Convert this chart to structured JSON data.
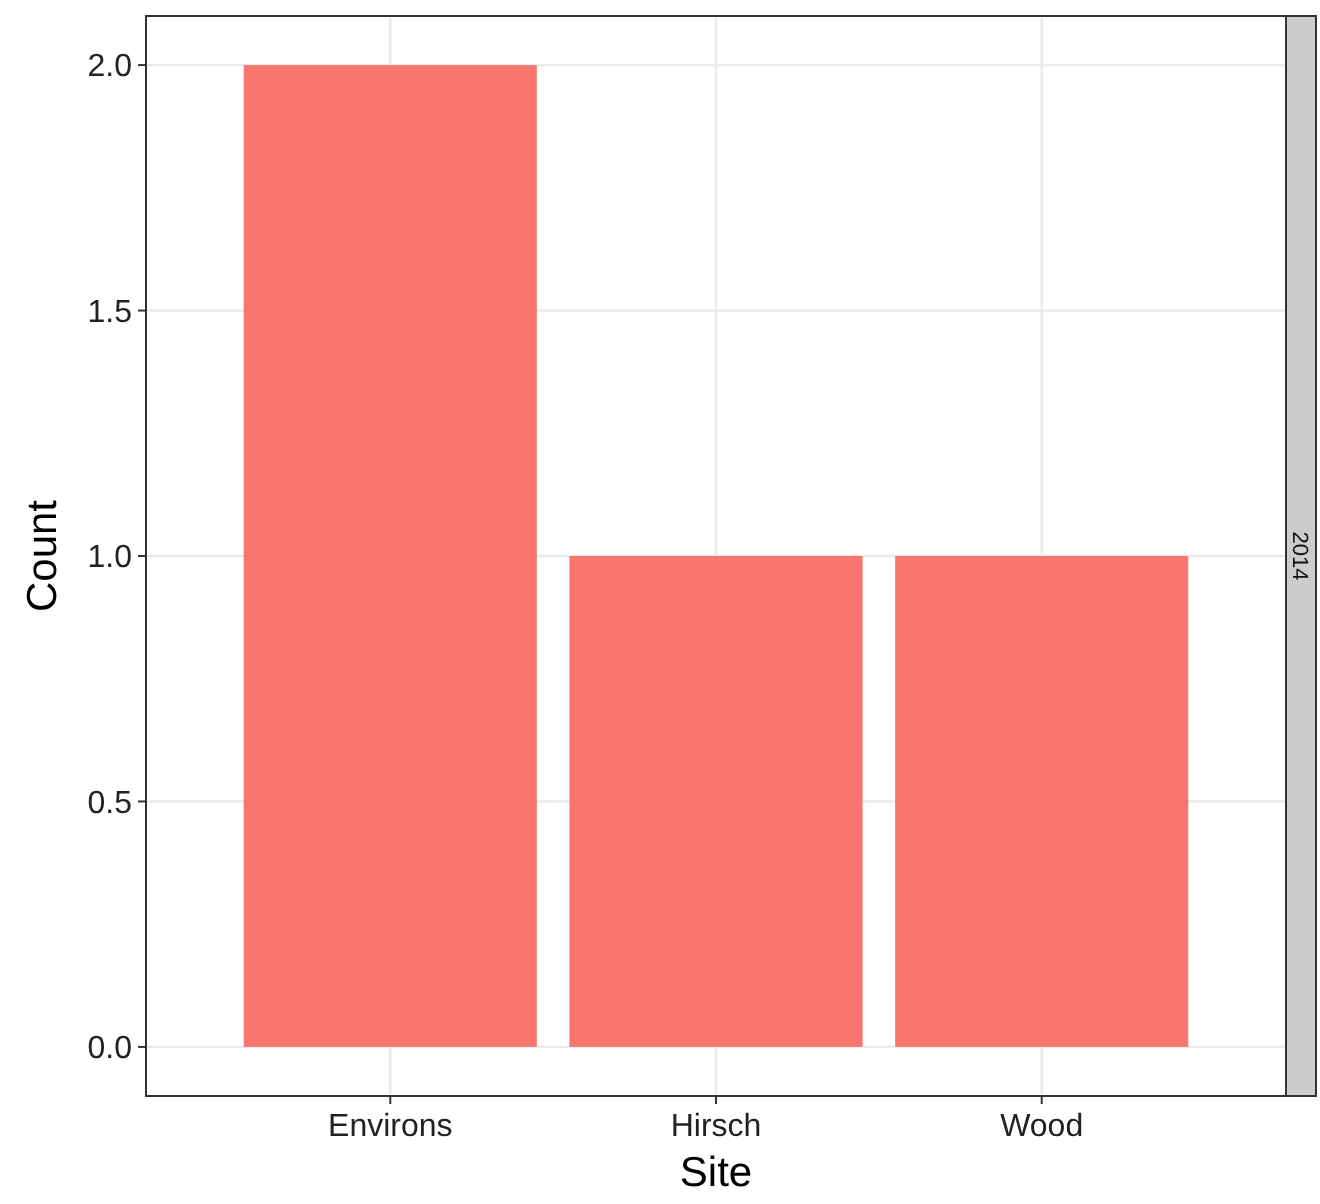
{
  "chart_data": {
    "type": "bar",
    "xlabel": "Site",
    "ylabel": "Count",
    "categories": [
      "Environs",
      "Hirsch",
      "Wood"
    ],
    "values": [
      2,
      1,
      1
    ],
    "color": "#f8766d",
    "ylim": [
      -0.1,
      2.1
    ],
    "yticks": [
      {
        "value": 0,
        "label": "0.0"
      },
      {
        "value": 0.5,
        "label": "0.5"
      },
      {
        "value": 1,
        "label": "1.0"
      },
      {
        "value": 1.5,
        "label": "1.5"
      },
      {
        "value": 2,
        "label": "2.0"
      }
    ],
    "grid": true,
    "annotations": [
      "2014"
    ]
  }
}
